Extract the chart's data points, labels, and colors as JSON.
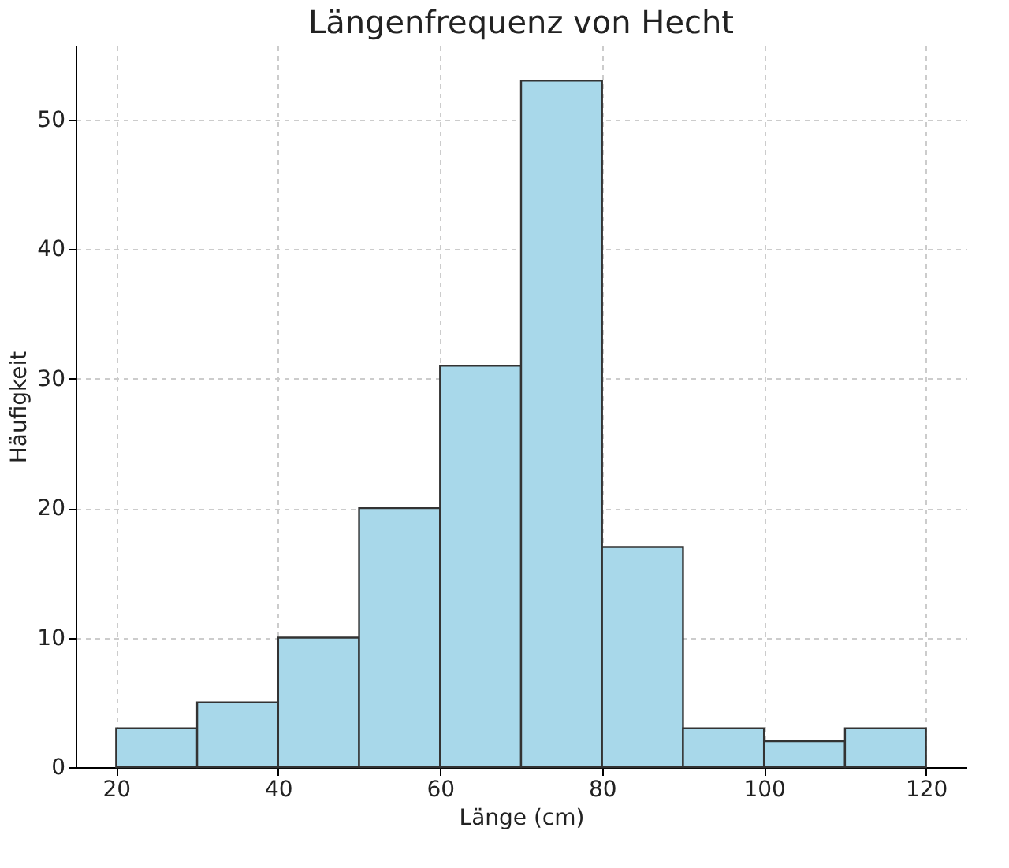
{
  "chart_data": {
    "type": "histogram",
    "title": "Längenfrequenz von Hecht",
    "xlabel": "Länge (cm)",
    "ylabel": "Häufigkeit",
    "bins": [
      20,
      30,
      40,
      50,
      60,
      70,
      80,
      90,
      100,
      110,
      120
    ],
    "values": [
      3,
      5,
      10,
      20,
      31,
      53,
      17,
      3,
      2,
      3
    ],
    "color": "#a8d8ea",
    "xlim": [
      15,
      125
    ],
    "xticks": [
      20,
      40,
      60,
      80,
      100,
      120
    ],
    "ylim": [
      0,
      55.7
    ],
    "yticks": [
      0,
      10,
      20,
      30,
      40,
      50
    ],
    "grid": true
  }
}
